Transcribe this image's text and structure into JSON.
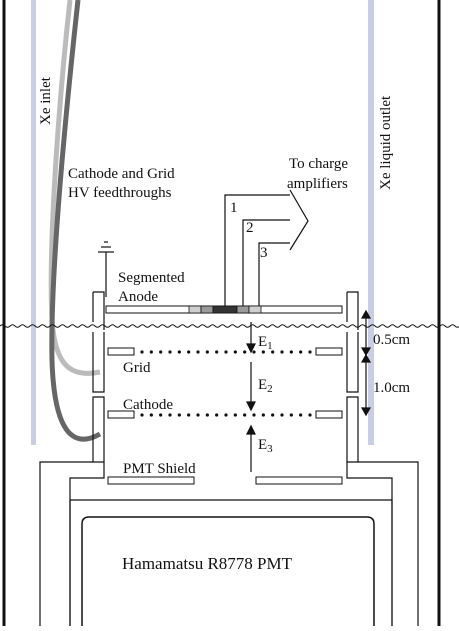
{
  "labels": {
    "xe_inlet": "Xe inlet",
    "xe_outlet": "Xe liquid outlet",
    "feedthrough_line1": "Cathode and Grid",
    "feedthrough_line2": "HV feedthroughs",
    "amplifier_line1": "To charge",
    "amplifier_line2": "amplifiers",
    "channel_1": "1",
    "channel_2": "2",
    "channel_3": "3",
    "anode_line1": "Segmented",
    "anode_line2": "Anode",
    "grid": "Grid",
    "cathode": "Cathode",
    "pmt_shield": "PMT Shield",
    "pmt": "Hamamatsu R8778 PMT",
    "gap_top": "0.5cm",
    "gap_bottom": "1.0cm"
  },
  "fields": [
    {
      "letter": "E",
      "index": "1"
    },
    {
      "letter": "E",
      "index": "2"
    },
    {
      "letter": "E",
      "index": "3"
    }
  ],
  "colors": {
    "line": "#111111",
    "pipe": "#c9cde6",
    "cable_light": "#bbbbbb",
    "cable_dark": "#666666",
    "pad_light": "#cfcfcf",
    "pad_mid": "#9a9a9a",
    "pad_dark": "#333333"
  }
}
